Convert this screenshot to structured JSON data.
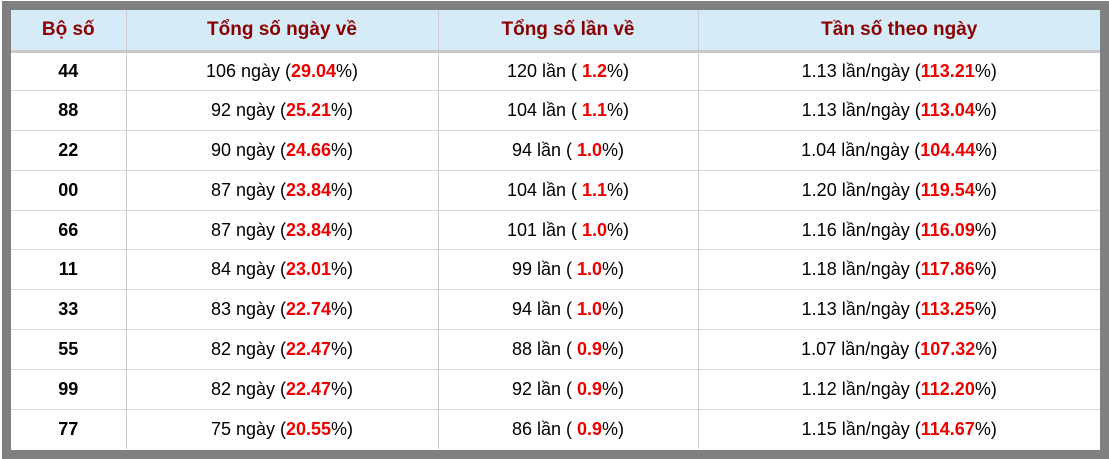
{
  "colors": {
    "frame_gray": "#808080",
    "header_bg": "#d5ebf7",
    "header_text": "#8b0000",
    "percent_red": "#ee0000",
    "cell_border": "#cccccc"
  },
  "table": {
    "columns": [
      {
        "label": "Bộ số"
      },
      {
        "label": "Tổng số ngày về"
      },
      {
        "label": "Tổng số lần về"
      },
      {
        "label": "Tần số theo ngày"
      }
    ],
    "units": {
      "days": "ngày",
      "times": "lần",
      "freq": "lần/ngày"
    },
    "rows": [
      {
        "pair": "44",
        "days": "106",
        "days_pct": "29.04",
        "times": "120",
        "times_pct": "1.2",
        "freq": "1.13",
        "freq_pct": "113.21"
      },
      {
        "pair": "88",
        "days": "92",
        "days_pct": "25.21",
        "times": "104",
        "times_pct": "1.1",
        "freq": "1.13",
        "freq_pct": "113.04"
      },
      {
        "pair": "22",
        "days": "90",
        "days_pct": "24.66",
        "times": "94",
        "times_pct": "1.0",
        "freq": "1.04",
        "freq_pct": "104.44"
      },
      {
        "pair": "00",
        "days": "87",
        "days_pct": "23.84",
        "times": "104",
        "times_pct": "1.1",
        "freq": "1.20",
        "freq_pct": "119.54"
      },
      {
        "pair": "66",
        "days": "87",
        "days_pct": "23.84",
        "times": "101",
        "times_pct": "1.0",
        "freq": "1.16",
        "freq_pct": "116.09"
      },
      {
        "pair": "11",
        "days": "84",
        "days_pct": "23.01",
        "times": "99",
        "times_pct": "1.0",
        "freq": "1.18",
        "freq_pct": "117.86"
      },
      {
        "pair": "33",
        "days": "83",
        "days_pct": "22.74",
        "times": "94",
        "times_pct": "1.0",
        "freq": "1.13",
        "freq_pct": "113.25"
      },
      {
        "pair": "55",
        "days": "82",
        "days_pct": "22.47",
        "times": "88",
        "times_pct": "0.9",
        "freq": "1.07",
        "freq_pct": "107.32"
      },
      {
        "pair": "99",
        "days": "82",
        "days_pct": "22.47",
        "times": "92",
        "times_pct": "0.9",
        "freq": "1.12",
        "freq_pct": "112.20"
      },
      {
        "pair": "77",
        "days": "75",
        "days_pct": "20.55",
        "times": "86",
        "times_pct": "0.9",
        "freq": "1.15",
        "freq_pct": "114.67"
      }
    ]
  },
  "chart_data": {
    "type": "table",
    "title": "",
    "columns": [
      "Bộ số",
      "Tổng số ngày về",
      "Tổng số lần về",
      "Tần số theo ngày"
    ],
    "rows": [
      [
        "44",
        "106 ngày (29.04%)",
        "120 lần ( 1.2%)",
        "1.13 lần/ngày (113.21%)"
      ],
      [
        "88",
        "92 ngày (25.21%)",
        "104 lần ( 1.1%)",
        "1.13 lần/ngày (113.04%)"
      ],
      [
        "22",
        "90 ngày (24.66%)",
        "94 lần ( 1.0%)",
        "1.04 lần/ngày (104.44%)"
      ],
      [
        "00",
        "87 ngày (23.84%)",
        "104 lần ( 1.1%)",
        "1.20 lần/ngày (119.54%)"
      ],
      [
        "66",
        "87 ngày (23.84%)",
        "101 lần ( 1.0%)",
        "1.16 lần/ngày (116.09%)"
      ],
      [
        "11",
        "84 ngày (23.01%)",
        "99 lần ( 1.0%)",
        "1.18 lần/ngày (117.86%)"
      ],
      [
        "33",
        "83 ngày (22.74%)",
        "94 lần ( 1.0%)",
        "1.13 lần/ngày (113.25%)"
      ],
      [
        "55",
        "82 ngày (22.47%)",
        "88 lần ( 0.9%)",
        "1.07 lần/ngày (107.32%)"
      ],
      [
        "99",
        "82 ngày (22.47%)",
        "92 lần ( 0.9%)",
        "1.12 lần/ngày (112.20%)"
      ],
      [
        "77",
        "75 ngày (20.55%)",
        "86 lần ( 0.9%)",
        "1.15 lần/ngày (114.67%)"
      ]
    ]
  }
}
